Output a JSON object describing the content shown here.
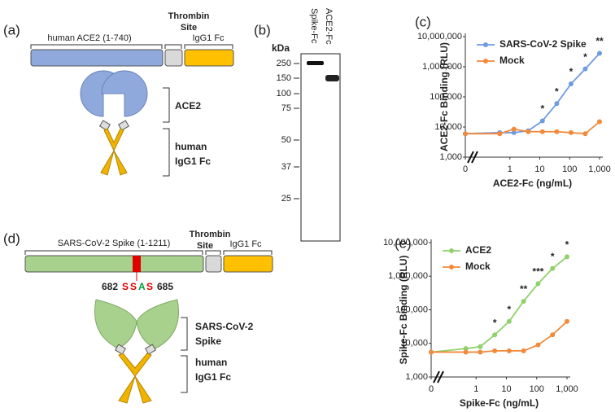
{
  "panel_a": {
    "panel": "(a)",
    "domains": [
      "human ACE2 (1-740)",
      "Thrombin",
      "Site",
      "IgG1 Fc"
    ],
    "labels": [
      "ACE2",
      "human",
      "IgG1 Fc"
    ]
  },
  "panel_b": {
    "panel": "(b)",
    "unit": "kDa",
    "lanes": [
      "Spike-Fc",
      "ACE2-Fc"
    ],
    "markers": [
      "250",
      "150",
      "100",
      "75",
      "50",
      "37",
      "25"
    ]
  },
  "panel_d": {
    "panel": "(d)",
    "domains": [
      "SARS-CoV-2 Spike (1-1211)",
      "Thrombin",
      "Site",
      "IgG1 Fc"
    ],
    "mutation": {
      "start": "682",
      "residues": [
        "S",
        "S",
        "A",
        "S"
      ],
      "end": "685"
    },
    "labels": [
      "SARS-CoV-2",
      "Spike",
      "human",
      "IgG1 Fc"
    ]
  },
  "chart_data": [
    {
      "type": "line",
      "panel": "(c)",
      "x_label": "ACE2-Fc (ng/mL)",
      "y_label": "ACE2-Fc Binding (RLU)",
      "x": [
        0,
        0.457,
        1.37,
        4.12,
        12.3,
        37,
        111,
        333,
        1000
      ],
      "xscale": "log",
      "x_break": true,
      "yscale": "log",
      "xlim": [
        0.1,
        1000
      ],
      "xticks": [
        0,
        1,
        10,
        100,
        {
          "value": 1000,
          "label": "1,000"
        }
      ],
      "ylim": [
        1000,
        10000000
      ],
      "yticks": [
        {
          "value": 1000,
          "label": "1,000"
        },
        {
          "value": 10000,
          "label": "10,000"
        },
        {
          "value": 100000,
          "label": "100,000"
        },
        {
          "value": 1000000,
          "label": "1,000,000"
        },
        {
          "value": 10000000,
          "label": "10,000,000"
        }
      ],
      "legend": "upper left",
      "series": [
        {
          "name": "SARS-CoV-2 Spike",
          "color": "#6f9be0",
          "values": [
            6000,
            6500,
            6500,
            7500,
            16000,
            60000,
            270000,
            850000,
            2800000
          ]
        },
        {
          "name": "Mock",
          "color": "#f28a3c",
          "values": [
            6000,
            6000,
            8500,
            7000,
            7000,
            7000,
            6500,
            6000,
            15000
          ]
        }
      ],
      "significance": [
        null,
        null,
        null,
        null,
        "*",
        "*",
        "*",
        "*",
        "**"
      ]
    },
    {
      "type": "line",
      "panel": "(e)",
      "x_label": "Spike-Fc (ng/mL)",
      "y_label": "Spike-Fc Binding (RLU)",
      "x": [
        0,
        0.457,
        1.37,
        4.12,
        12.3,
        37,
        111,
        333,
        1000
      ],
      "xscale": "log",
      "x_break": true,
      "yscale": "log",
      "xlim": [
        0.1,
        1000
      ],
      "xticks": [
        0,
        1,
        10,
        100,
        {
          "value": 1000,
          "label": "1,000"
        }
      ],
      "ylim": [
        1000,
        10000000
      ],
      "yticks": [
        {
          "value": 1000,
          "label": "1,000"
        },
        {
          "value": 10000,
          "label": "10,000"
        },
        {
          "value": 100000,
          "label": "100,000"
        },
        {
          "value": 1000000,
          "label": "1,000,000"
        },
        {
          "value": 10000000,
          "label": "10,000,000"
        }
      ],
      "legend": "upper left",
      "series": [
        {
          "name": "ACE2",
          "color": "#8fd16b",
          "values": [
            5500,
            7000,
            8000,
            18000,
            45000,
            180000,
            600000,
            1700000,
            3800000
          ]
        },
        {
          "name": "Mock",
          "color": "#f28a3c",
          "values": [
            5500,
            5500,
            5500,
            6000,
            6000,
            6000,
            9000,
            18000,
            45000
          ]
        }
      ],
      "significance": [
        null,
        null,
        null,
        "*",
        "*",
        "**",
        "***",
        "*",
        "*"
      ]
    }
  ]
}
